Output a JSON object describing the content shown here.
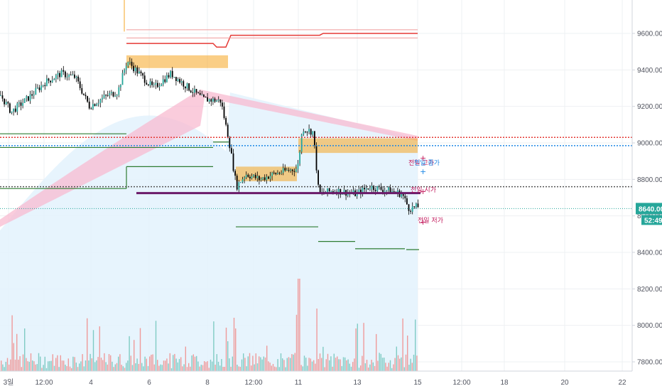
{
  "chart_data": {
    "type": "candlestick",
    "y_axis": {
      "ticks": [
        9600,
        9400,
        9200,
        9000,
        8800,
        8600,
        8400,
        8200,
        8000,
        7800
      ],
      "tick_labels": [
        "9600.00",
        "9400.00",
        "9200.00",
        "9000.00",
        "8800.00",
        "8600.00",
        "8400.00",
        "8200.00",
        "8000.00",
        "7800.00"
      ]
    },
    "x_axis": {
      "labels": [
        "3일",
        "12:00",
        "4",
        "6",
        "8",
        "12:00",
        "11",
        "13",
        "15",
        "12:00",
        "18",
        "20",
        "22"
      ]
    },
    "current_price": {
      "label": "8640.00",
      "value": 8640,
      "color": "#26a69a"
    },
    "countdown": {
      "label": "52:49"
    },
    "horizontal_lines": [
      {
        "value": 9030,
        "style": "dotted",
        "color": "#e53935"
      },
      {
        "value": 8985,
        "style": "dotted",
        "color": "#1e88e5"
      },
      {
        "value": 8725,
        "style": "solid",
        "color": "#6a1b6a"
      },
      {
        "value": 8760,
        "style": "dotted",
        "color": "#555555"
      }
    ],
    "annotations": [
      {
        "text": "전일 고가",
        "color": "#c2185b"
      },
      {
        "text": "전일 종가",
        "color": "#1e88e5"
      },
      {
        "text": "전일 시가",
        "color": "#c2185b"
      },
      {
        "text": "전일 저가",
        "color": "#c2185b"
      }
    ],
    "colors": {
      "up": "#26a69a",
      "down": "#000000",
      "vol_up": "#80cbc4",
      "vol_down": "#ef9a9a",
      "zone": "#f5a623",
      "cloud": "#f8bbd0",
      "area": "#e3f2fd"
    }
  }
}
